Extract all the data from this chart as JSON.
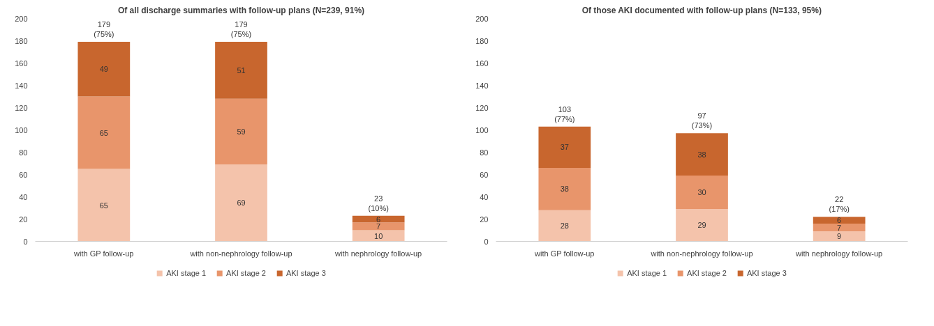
{
  "chart_data": [
    {
      "type": "bar",
      "title": "Of all discharge summaries with follow-up plans (N=239, 91%)",
      "categories": [
        "with GP follow-up",
        "with non-nephrology follow-up",
        "with nephrology follow-up"
      ],
      "stacked": true,
      "ylim": [
        0,
        200
      ],
      "yticks": [
        0,
        20,
        40,
        60,
        80,
        100,
        120,
        140,
        160,
        180,
        200
      ],
      "grid": false,
      "legend": "bottom",
      "data_labels": true,
      "totals": [
        "179 (75%)",
        "179 (75%)",
        "23 (10%)"
      ],
      "series": [
        {
          "name": "AKI stage 1",
          "color": "#f4c3ab",
          "values": [
            65,
            69,
            10
          ]
        },
        {
          "name": "AKI stage 2",
          "color": "#e8956b",
          "values": [
            65,
            59,
            7
          ]
        },
        {
          "name": "AKI stage 3",
          "color": "#c8662e",
          "values": [
            49,
            51,
            6
          ]
        }
      ]
    },
    {
      "type": "bar",
      "title": "Of those AKI documented with follow-up plans (N=133, 95%)",
      "categories": [
        "with GP follow-up",
        "with non-nephrology follow-up",
        "with nephrology follow-up"
      ],
      "stacked": true,
      "ylim": [
        0,
        200
      ],
      "yticks": [
        0,
        20,
        40,
        60,
        80,
        100,
        120,
        140,
        160,
        180,
        200
      ],
      "grid": false,
      "legend": "bottom",
      "data_labels": true,
      "totals": [
        "103 (77%)",
        "97 (73%)",
        "22 (17%)"
      ],
      "series": [
        {
          "name": "AKI stage 1",
          "color": "#f4c3ab",
          "values": [
            28,
            29,
            9
          ]
        },
        {
          "name": "AKI stage 2",
          "color": "#e8956b",
          "values": [
            38,
            30,
            7
          ]
        },
        {
          "name": "AKI stage 3",
          "color": "#c8662e",
          "values": [
            37,
            38,
            6
          ]
        }
      ]
    }
  ]
}
